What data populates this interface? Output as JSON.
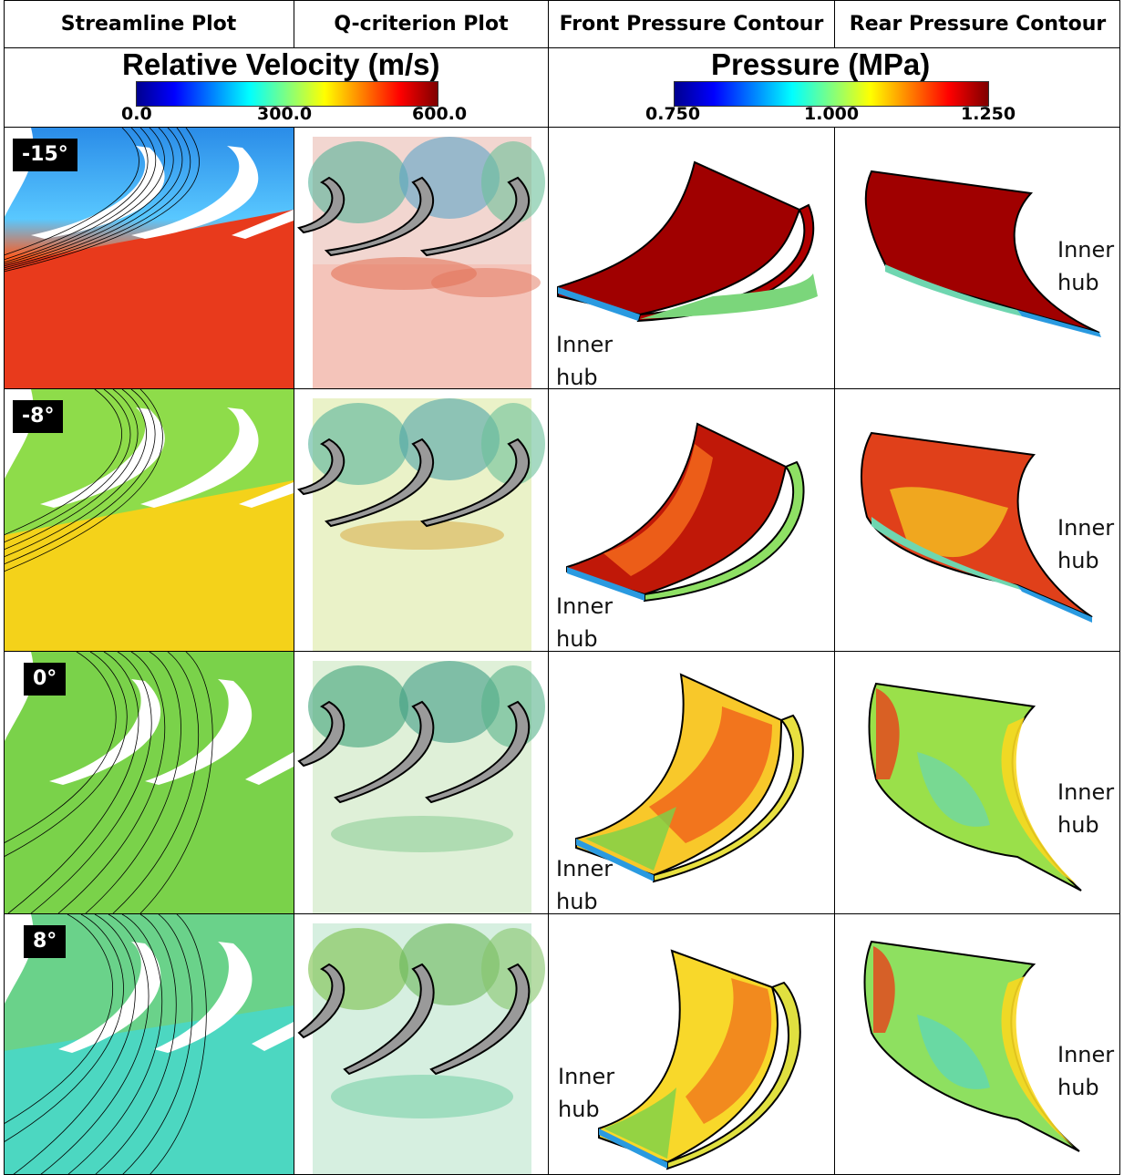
{
  "headers": {
    "streamline": "Streamline Plot",
    "qcriterion": "Q-criterion Plot",
    "front": "Front Pressure Contour",
    "rear": "Rear Pressure Contour"
  },
  "velocity_legend": {
    "title": "Relative Velocity (m/s)",
    "ticks": [
      "0.0",
      "300.0",
      "600.0"
    ]
  },
  "pressure_legend": {
    "title": "Pressure (MPa)",
    "ticks": [
      "0.750",
      "1.000",
      "1.250"
    ]
  },
  "rows": [
    {
      "angle": "-15°",
      "hub_line1": "Inner",
      "hub_line2": "hub"
    },
    {
      "angle": "-8°",
      "hub_line1": "Inner",
      "hub_line2": "hub"
    },
    {
      "angle": "0°",
      "hub_line1": "Inner",
      "hub_line2": "hub"
    },
    {
      "angle": "8°",
      "hub_line1": "Inner",
      "hub_line2": "hub"
    }
  ],
  "colors": {
    "jet_low": "#00008f",
    "jet_mid": "#7fff7f",
    "jet_high": "#7f0000"
  }
}
